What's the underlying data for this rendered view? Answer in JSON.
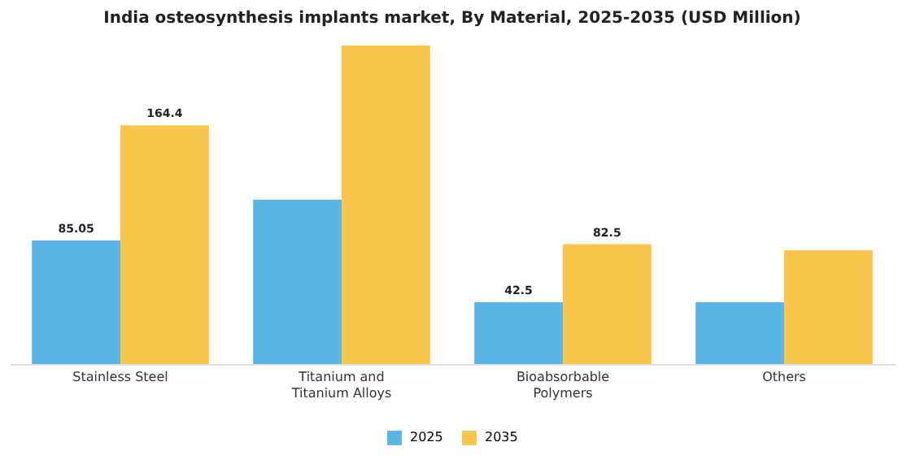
{
  "chart_data": {
    "type": "bar",
    "title": "India osteosynthesis implants market, By Material, 2025-2035 (USD Million)",
    "categories": [
      "Stainless Steel",
      "Titanium and Titanium Alloys",
      "Bioabsorbable Polymers",
      "Others"
    ],
    "series": [
      {
        "name": "2025",
        "color": "#5ab4e6",
        "values": [
          85.05,
          113.2,
          42.5,
          42.5
        ],
        "value_labels": [
          "85.05",
          null,
          "42.5",
          null
        ]
      },
      {
        "name": "2035",
        "color": "#f9c54b",
        "values": [
          164.4,
          219.4,
          82.5,
          78.4
        ],
        "value_labels": [
          "164.4",
          null,
          "82.5",
          null
        ]
      }
    ],
    "legend": "bottom"
  }
}
